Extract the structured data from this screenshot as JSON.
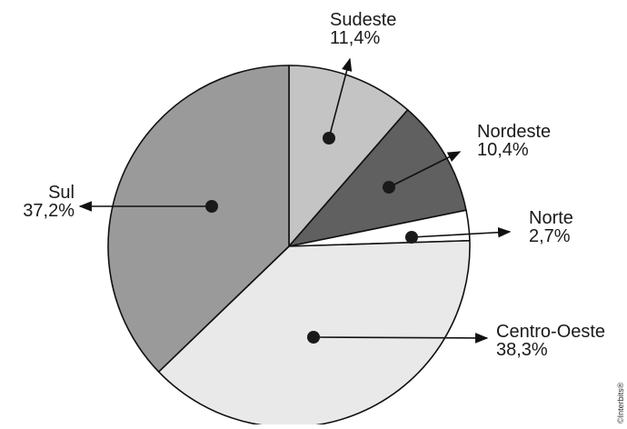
{
  "chart_data": {
    "type": "pie",
    "slices": [
      {
        "name": "Sudeste",
        "value": 11.4,
        "label": "11,4%",
        "color": "#c4c4c4"
      },
      {
        "name": "Nordeste",
        "value": 10.4,
        "label": "10,4%",
        "color": "#606060"
      },
      {
        "name": "Norte",
        "value": 2.7,
        "label": "2,7%",
        "color": "#ffffff"
      },
      {
        "name": "Centro-Oeste",
        "value": 38.3,
        "label": "38,3%",
        "color": "#e9e9e9"
      },
      {
        "name": "Sul",
        "value": 37.2,
        "label": "37,2%",
        "color": "#9a9a9a"
      }
    ],
    "start": "12 o'clock",
    "direction": "clockwise"
  },
  "credit": "©Interbits®"
}
